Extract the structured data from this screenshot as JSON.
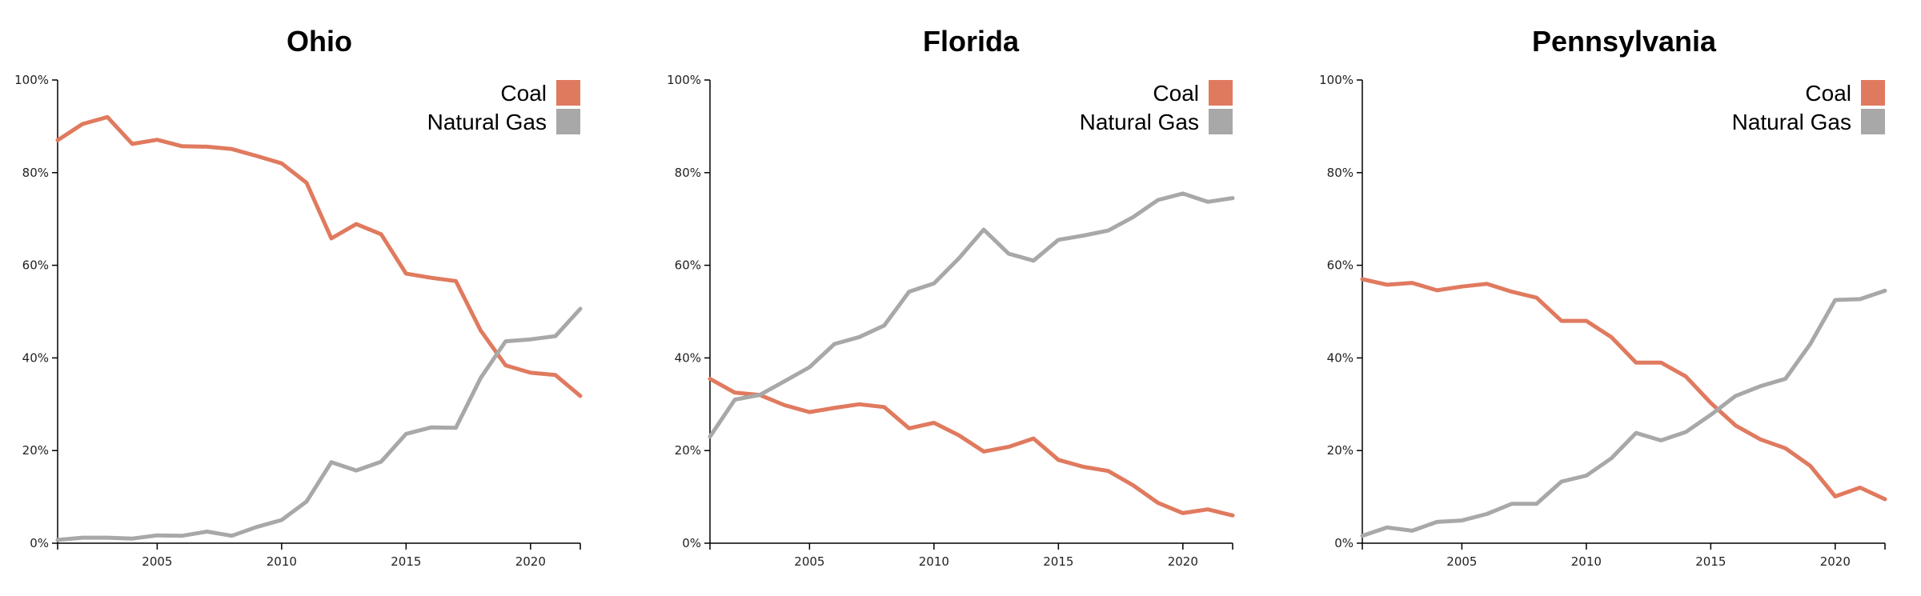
{
  "colors": {
    "coal": "#e07a5f",
    "natural_gas": "#a8a8a8"
  },
  "chart_data": [
    {
      "type": "line",
      "title": "Ohio",
      "xlim": [
        2001,
        2022
      ],
      "ylim": [
        0,
        1
      ],
      "x_ticks": [
        2005,
        2010,
        2015,
        2020
      ],
      "y_ticks": [
        "0%",
        "20%",
        "40%",
        "60%",
        "80%",
        "100%"
      ],
      "y_tick_values": [
        0,
        0.2,
        0.4,
        0.6,
        0.8,
        1.0
      ],
      "legend_placement": "top-right",
      "x": [
        2001,
        2002,
        2003,
        2004,
        2005,
        2006,
        2007,
        2008,
        2009,
        2010,
        2011,
        2012,
        2013,
        2014,
        2015,
        2016,
        2017,
        2018,
        2019,
        2020,
        2021,
        2022
      ],
      "series": [
        {
          "name": "Coal",
          "color": "#e07a5f",
          "values": [
            0.87,
            0.905,
            0.92,
            0.862,
            0.871,
            0.857,
            0.856,
            0.851,
            0.836,
            0.82,
            0.778,
            0.658,
            0.689,
            0.667,
            0.582,
            0.573,
            0.566,
            0.459,
            0.384,
            0.368,
            0.363,
            0.318
          ]
        },
        {
          "name": "Natural Gas",
          "color": "#a8a8a8",
          "values": [
            0.007,
            0.012,
            0.012,
            0.01,
            0.017,
            0.016,
            0.025,
            0.016,
            0.035,
            0.05,
            0.09,
            0.175,
            0.157,
            0.176,
            0.236,
            0.25,
            0.249,
            0.357,
            0.436,
            0.44,
            0.447,
            0.506
          ]
        }
      ]
    },
    {
      "type": "line",
      "title": "Florida",
      "xlim": [
        2001,
        2022
      ],
      "ylim": [
        0,
        1
      ],
      "x_ticks": [
        2005,
        2010,
        2015,
        2020
      ],
      "y_ticks": [
        "0%",
        "20%",
        "40%",
        "60%",
        "80%",
        "100%"
      ],
      "y_tick_values": [
        0,
        0.2,
        0.4,
        0.6,
        0.8,
        1.0
      ],
      "legend_placement": "top-right",
      "x": [
        2001,
        2002,
        2003,
        2004,
        2005,
        2006,
        2007,
        2008,
        2009,
        2010,
        2011,
        2012,
        2013,
        2014,
        2015,
        2016,
        2017,
        2018,
        2019,
        2020,
        2021,
        2022
      ],
      "series": [
        {
          "name": "Coal",
          "color": "#e07a5f",
          "values": [
            0.355,
            0.325,
            0.32,
            0.298,
            0.283,
            0.292,
            0.3,
            0.294,
            0.248,
            0.26,
            0.233,
            0.198,
            0.208,
            0.226,
            0.18,
            0.165,
            0.156,
            0.125,
            0.087,
            0.065,
            0.073,
            0.06
          ]
        },
        {
          "name": "Natural Gas",
          "color": "#a8a8a8",
          "values": [
            0.23,
            0.31,
            0.32,
            0.35,
            0.38,
            0.43,
            0.445,
            0.47,
            0.543,
            0.561,
            0.615,
            0.677,
            0.625,
            0.61,
            0.655,
            0.664,
            0.675,
            0.704,
            0.741,
            0.755,
            0.737,
            0.745
          ]
        }
      ]
    },
    {
      "type": "line",
      "title": "Pennsylvania",
      "xlim": [
        2001,
        2022
      ],
      "ylim": [
        0,
        1
      ],
      "x_ticks": [
        2005,
        2010,
        2015,
        2020
      ],
      "y_ticks": [
        "0%",
        "20%",
        "40%",
        "60%",
        "80%",
        "100%"
      ],
      "y_tick_values": [
        0,
        0.2,
        0.4,
        0.6,
        0.8,
        1.0
      ],
      "legend_placement": "top-right",
      "x": [
        2001,
        2002,
        2003,
        2004,
        2005,
        2006,
        2007,
        2008,
        2009,
        2010,
        2011,
        2012,
        2013,
        2014,
        2015,
        2016,
        2017,
        2018,
        2019,
        2020,
        2021,
        2022
      ],
      "series": [
        {
          "name": "Coal",
          "color": "#e07a5f",
          "values": [
            0.57,
            0.558,
            0.562,
            0.546,
            0.554,
            0.56,
            0.543,
            0.53,
            0.48,
            0.48,
            0.445,
            0.39,
            0.39,
            0.36,
            0.303,
            0.254,
            0.224,
            0.205,
            0.167,
            0.101,
            0.12,
            0.095
          ]
        },
        {
          "name": "Natural Gas",
          "color": "#a8a8a8",
          "values": [
            0.016,
            0.034,
            0.027,
            0.046,
            0.049,
            0.063,
            0.085,
            0.085,
            0.133,
            0.146,
            0.183,
            0.238,
            0.222,
            0.24,
            0.277,
            0.318,
            0.339,
            0.355,
            0.43,
            0.525,
            0.527,
            0.545
          ]
        }
      ]
    }
  ]
}
